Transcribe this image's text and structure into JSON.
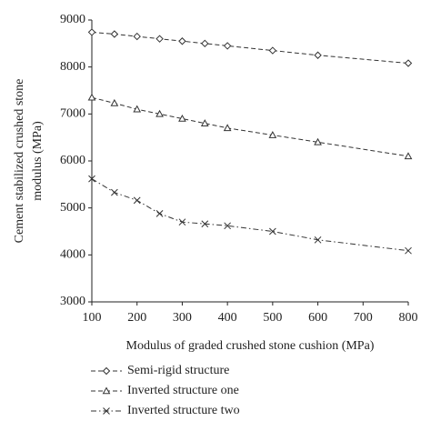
{
  "chart_data": {
    "type": "line",
    "xlabel": "Modulus of graded crushed stone cushion (MPa)",
    "ylabel": [
      "Cement stabilized crushed stone",
      "modulus (MPa)"
    ],
    "x": [
      100,
      150,
      200,
      250,
      300,
      350,
      400,
      500,
      600,
      800
    ],
    "series": [
      {
        "name": "Semi-rigid structure",
        "color": "#333333",
        "marker": "diamond",
        "dash": "dashed",
        "values": [
          8740,
          8700,
          8650,
          8600,
          8550,
          8500,
          8450,
          8350,
          8250,
          8080
        ]
      },
      {
        "name": "Inverted structure one",
        "color": "#333333",
        "marker": "triangle",
        "dash": "dashed",
        "values": [
          7350,
          7230,
          7100,
          7000,
          6900,
          6800,
          6700,
          6550,
          6400,
          6100
        ]
      },
      {
        "name": "Inverted structure two",
        "color": "#333333",
        "marker": "x",
        "dash": "dashdot",
        "values": [
          5620,
          5330,
          5160,
          4880,
          4700,
          4660,
          4620,
          4500,
          4320,
          4090
        ]
      }
    ],
    "xlim": [
      100,
      800
    ],
    "xticks": [
      100,
      200,
      300,
      400,
      500,
      600,
      700,
      800
    ],
    "ylim": [
      3000,
      9000
    ],
    "yticks": [
      3000,
      4000,
      5000,
      6000,
      7000,
      8000,
      9000
    ],
    "grid": false
  }
}
